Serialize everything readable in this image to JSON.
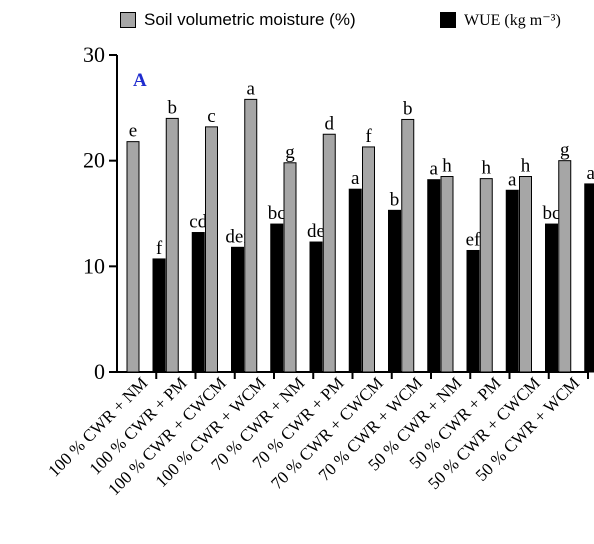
{
  "chart_data": {
    "type": "bar",
    "panel_label": "A",
    "categories": [
      "100 % CWR + NM",
      "100 % CWR + PM",
      "100 % CWR + CWCM",
      "100 % CWR + WCM",
      "70 % CWR + NM",
      "70 % CWR + PM",
      "70 % CWR + CWCM",
      "70 % CWR + WCM",
      "50 % CWR + NM",
      "50 % CWR + PM",
      "50 % CWR + CWCM",
      "50 % CWR + WCM"
    ],
    "series": [
      {
        "name": "Soil volumetric moisture (%)",
        "color": "#a6a6a6",
        "values": [
          21.8,
          24.0,
          23.2,
          25.8,
          19.8,
          22.5,
          21.3,
          23.9,
          18.5,
          18.3,
          18.5,
          20.0
        ],
        "letters": [
          "e",
          "b",
          "c",
          "a",
          "g",
          "d",
          "f",
          "b",
          "h",
          "h",
          "h",
          "g"
        ]
      },
      {
        "name": "WUE (kg m⁻³)",
        "color": "#000000",
        "values": [
          10.7,
          13.2,
          11.8,
          14.0,
          12.3,
          17.3,
          15.3,
          18.2,
          11.5,
          17.2,
          14.0,
          17.8
        ],
        "letters": [
          "f",
          "cd",
          "def",
          "bc",
          "de",
          "a",
          "b",
          "a",
          "ef",
          "a",
          "bc",
          "a"
        ]
      }
    ],
    "ylim": [
      0,
      30
    ],
    "yticks": [
      0,
      10,
      20,
      30
    ],
    "xlabel": "",
    "ylabel": "",
    "legend_position": "top"
  }
}
